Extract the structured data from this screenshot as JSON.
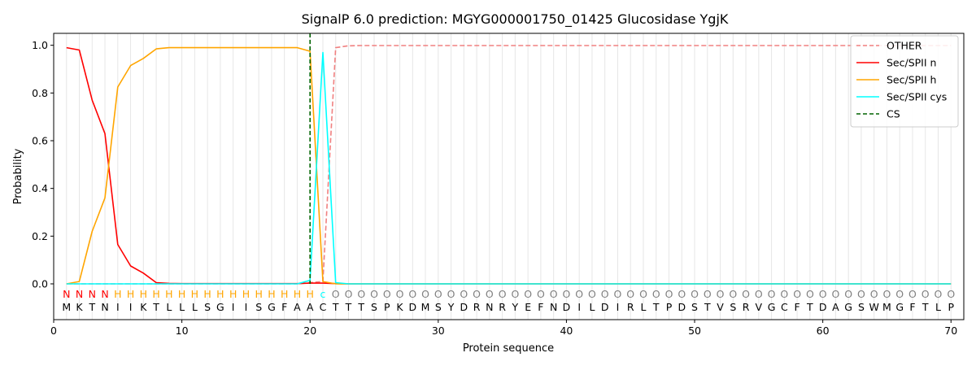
{
  "chart_data": {
    "type": "line",
    "title": "SignalP 6.0 prediction: MGYG000001750_01425 Glucosidase YgjK",
    "xlabel": "Protein sequence",
    "ylabel": "Probability",
    "xlim": [
      0,
      71
    ],
    "ylim": [
      -0.15,
      1.05
    ],
    "x_ticks": [
      0,
      10,
      20,
      30,
      40,
      50,
      60,
      70
    ],
    "y_ticks": [
      0.0,
      0.2,
      0.4,
      0.6,
      0.8,
      1.0
    ],
    "x_tick_labels": [
      "0",
      "10",
      "20",
      "30",
      "40",
      "50",
      "60",
      "70"
    ],
    "y_tick_labels": [
      "0.0",
      "0.2",
      "0.4",
      "0.6",
      "0.8",
      "1.0"
    ],
    "grid": "vertical lines at each residue",
    "legend_position": "top-right",
    "sequence": "MKTNIIKTLLLSGIISGFAACTTTSPKDMSYDRNRYEFNDILDIRLTPDSTVSRVGCFTDAGSWMGFTLP",
    "labels": "NNNNHHHHHHHHHHHHHHHHcOOOOOOOOOOOOOOOOOOOOOOOOOOOOOOOOOOOOOOOOOOOOOOOOOO",
    "label_colors": {
      "N": "#ff0000",
      "H": "#ffa500",
      "c": "#00ffff",
      "O": "#808080"
    },
    "cs_position": 20,
    "series": [
      {
        "name": "OTHER",
        "color": "#f08080",
        "style": "dashed",
        "values": [
          0.0,
          0.0,
          0.0,
          0.0,
          0.0,
          0.0,
          0.0,
          0.0,
          0.0,
          0.0,
          0.0,
          0.0,
          0.0,
          0.0,
          0.0,
          0.0,
          0.0,
          0.0,
          0.0,
          0.005,
          0.01,
          0.99,
          0.998,
          0.999,
          0.999,
          0.999,
          0.999,
          0.999,
          0.999,
          0.999,
          0.999,
          0.999,
          0.999,
          0.999,
          0.999,
          0.999,
          0.999,
          0.999,
          0.999,
          0.999,
          0.999,
          0.999,
          0.999,
          0.999,
          0.999,
          0.999,
          0.999,
          0.999,
          0.999,
          0.999,
          0.999,
          0.999,
          0.999,
          0.999,
          0.999,
          0.999,
          0.999,
          0.999,
          0.999,
          0.999,
          0.999,
          0.999,
          0.999,
          0.999,
          0.999,
          0.999,
          0.999,
          0.999,
          0.999,
          0.999
        ]
      },
      {
        "name": "Sec/SPII n",
        "color": "#ff0000",
        "style": "solid",
        "values": [
          0.99,
          0.98,
          0.77,
          0.63,
          0.165,
          0.075,
          0.045,
          0.005,
          0.002,
          0.001,
          0.001,
          0.001,
          0.001,
          0.001,
          0.001,
          0.001,
          0.001,
          0.001,
          0.001,
          0.003,
          0.003,
          0.001,
          0.0,
          0.0,
          0.0,
          0.0,
          0.0,
          0.0,
          0.0,
          0.0,
          0.0,
          0.0,
          0.0,
          0.0,
          0.0,
          0.0,
          0.0,
          0.0,
          0.0,
          0.0,
          0.0,
          0.0,
          0.0,
          0.0,
          0.0,
          0.0,
          0.0,
          0.0,
          0.0,
          0.0,
          0.0,
          0.0,
          0.0,
          0.0,
          0.0,
          0.0,
          0.0,
          0.0,
          0.0,
          0.0,
          0.0,
          0.0,
          0.0,
          0.0,
          0.0,
          0.0,
          0.0,
          0.0,
          0.0,
          0.0
        ]
      },
      {
        "name": "Sec/SPII h",
        "color": "#ffa500",
        "style": "solid",
        "values": [
          0.0,
          0.01,
          0.22,
          0.36,
          0.825,
          0.915,
          0.945,
          0.985,
          0.99,
          0.99,
          0.99,
          0.99,
          0.99,
          0.99,
          0.99,
          0.99,
          0.99,
          0.99,
          0.99,
          0.975,
          0.01,
          0.0,
          0.0,
          0.0,
          0.0,
          0.0,
          0.0,
          0.0,
          0.0,
          0.0,
          0.0,
          0.0,
          0.0,
          0.0,
          0.0,
          0.0,
          0.0,
          0.0,
          0.0,
          0.0,
          0.0,
          0.0,
          0.0,
          0.0,
          0.0,
          0.0,
          0.0,
          0.0,
          0.0,
          0.0,
          0.0,
          0.0,
          0.0,
          0.0,
          0.0,
          0.0,
          0.0,
          0.0,
          0.0,
          0.0,
          0.0,
          0.0,
          0.0,
          0.0,
          0.0,
          0.0,
          0.0,
          0.0,
          0.0,
          0.0
        ]
      },
      {
        "name": "Sec/SPII cys",
        "color": "#00ffff",
        "style": "solid",
        "values": [
          0.0,
          0.0,
          0.0,
          0.0,
          0.0,
          0.0,
          0.0,
          0.0,
          0.0,
          0.0,
          0.0,
          0.0,
          0.0,
          0.0,
          0.0,
          0.0,
          0.0,
          0.0,
          0.0,
          0.015,
          0.97,
          0.005,
          0.0,
          0.0,
          0.0,
          0.0,
          0.0,
          0.0,
          0.0,
          0.0,
          0.0,
          0.0,
          0.0,
          0.0,
          0.0,
          0.0,
          0.0,
          0.0,
          0.0,
          0.0,
          0.0,
          0.0,
          0.0,
          0.0,
          0.0,
          0.0,
          0.0,
          0.0,
          0.0,
          0.0,
          0.0,
          0.0,
          0.0,
          0.0,
          0.0,
          0.0,
          0.0,
          0.0,
          0.0,
          0.0,
          0.0,
          0.0,
          0.0,
          0.0,
          0.0,
          0.0,
          0.0,
          0.0,
          0.0,
          0.0
        ]
      },
      {
        "name": "CS",
        "color": "#006400",
        "style": "dashed-vertical"
      }
    ]
  }
}
